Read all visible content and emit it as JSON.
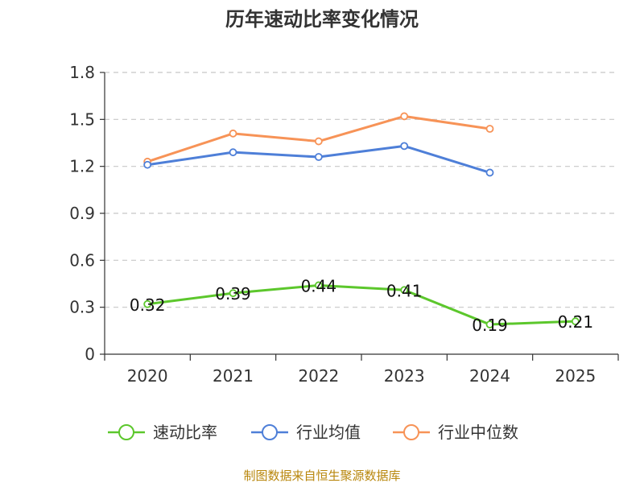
{
  "chart_data": {
    "type": "line",
    "title": "历年速动比率变化情况",
    "categories": [
      "2020",
      "2021",
      "2022",
      "2023",
      "2024",
      "2025"
    ],
    "ylim": [
      0,
      1.8
    ],
    "yticks": [
      "0",
      "0.3",
      "0.6",
      "0.9",
      "1.2",
      "1.5",
      "1.8"
    ],
    "grid": true,
    "series": [
      {
        "name": "速动比率",
        "color": "#5cc72c",
        "values": [
          0.32,
          0.39,
          0.44,
          0.41,
          0.19,
          0.21
        ],
        "labels": [
          "0.32",
          "0.39",
          "0.44",
          "0.41",
          "0.19",
          "0.21"
        ]
      },
      {
        "name": "行业均值",
        "color": "#4e7fd8",
        "values": [
          1.21,
          1.29,
          1.26,
          1.33,
          1.16,
          null
        ]
      },
      {
        "name": "行业中位数",
        "color": "#f79357",
        "values": [
          1.23,
          1.41,
          1.36,
          1.52,
          1.44,
          null
        ]
      }
    ],
    "legend_position": "bottom",
    "source": "制图数据来自恒生聚源数据库"
  }
}
